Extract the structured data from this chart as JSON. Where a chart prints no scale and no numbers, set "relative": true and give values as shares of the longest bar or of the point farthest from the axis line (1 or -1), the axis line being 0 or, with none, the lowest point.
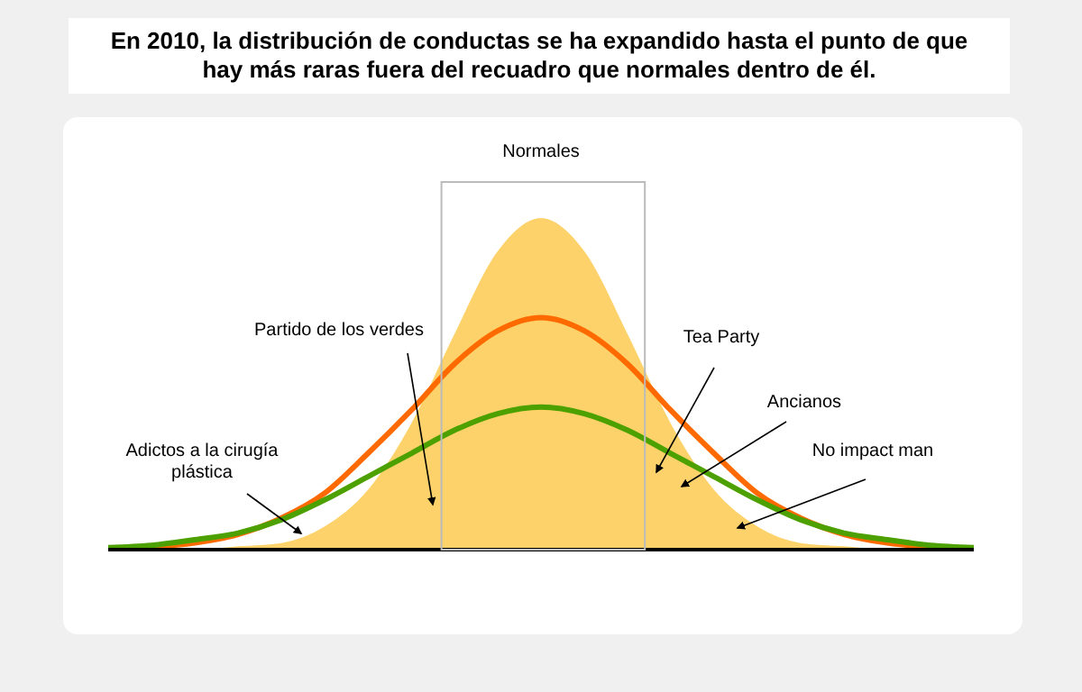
{
  "chart_data": {
    "type": "line",
    "relative": true,
    "title": "En 2010, la distribución de conductas se ha expandido hasta el punto de que hay más raras fuera del recuadro que normales dentro de él.",
    "categories": [
      null,
      null,
      null,
      null,
      null,
      null,
      null,
      null,
      null,
      null,
      null,
      null,
      null,
      null,
      null,
      null,
      null,
      null,
      null,
      null,
      null
    ],
    "series": [
      {
        "type": "area",
        "color": "#fdd26a",
        "values": [
          0,
          0,
          0,
          0.01,
          0.02,
          0.07,
          0.18,
          0.38,
          0.65,
          0.9,
          1,
          0.9,
          0.65,
          0.38,
          0.18,
          0.07,
          0.02,
          0.01,
          0,
          0,
          0
        ]
      },
      {
        "color": "#ff6a00",
        "values": [
          0.003,
          0.008,
          0.02,
          0.046,
          0.095,
          0.17,
          0.29,
          0.42,
          0.56,
          0.66,
          0.7,
          0.66,
          0.56,
          0.42,
          0.29,
          0.17,
          0.095,
          0.046,
          0.02,
          0.008,
          0.003
        ]
      },
      {
        "color": "#4ca000",
        "values": [
          0.006,
          0.013,
          0.03,
          0.05,
          0.09,
          0.15,
          0.22,
          0.29,
          0.36,
          0.41,
          0.43,
          0.41,
          0.36,
          0.29,
          0.22,
          0.15,
          0.09,
          0.05,
          0.03,
          0.013,
          0.006
        ]
      }
    ],
    "annotations": [
      "Normales",
      "Partido de los verdes",
      "Adictos a la cirugía plástica",
      "Tea Party",
      "Ancianos",
      "No impact man"
    ]
  }
}
